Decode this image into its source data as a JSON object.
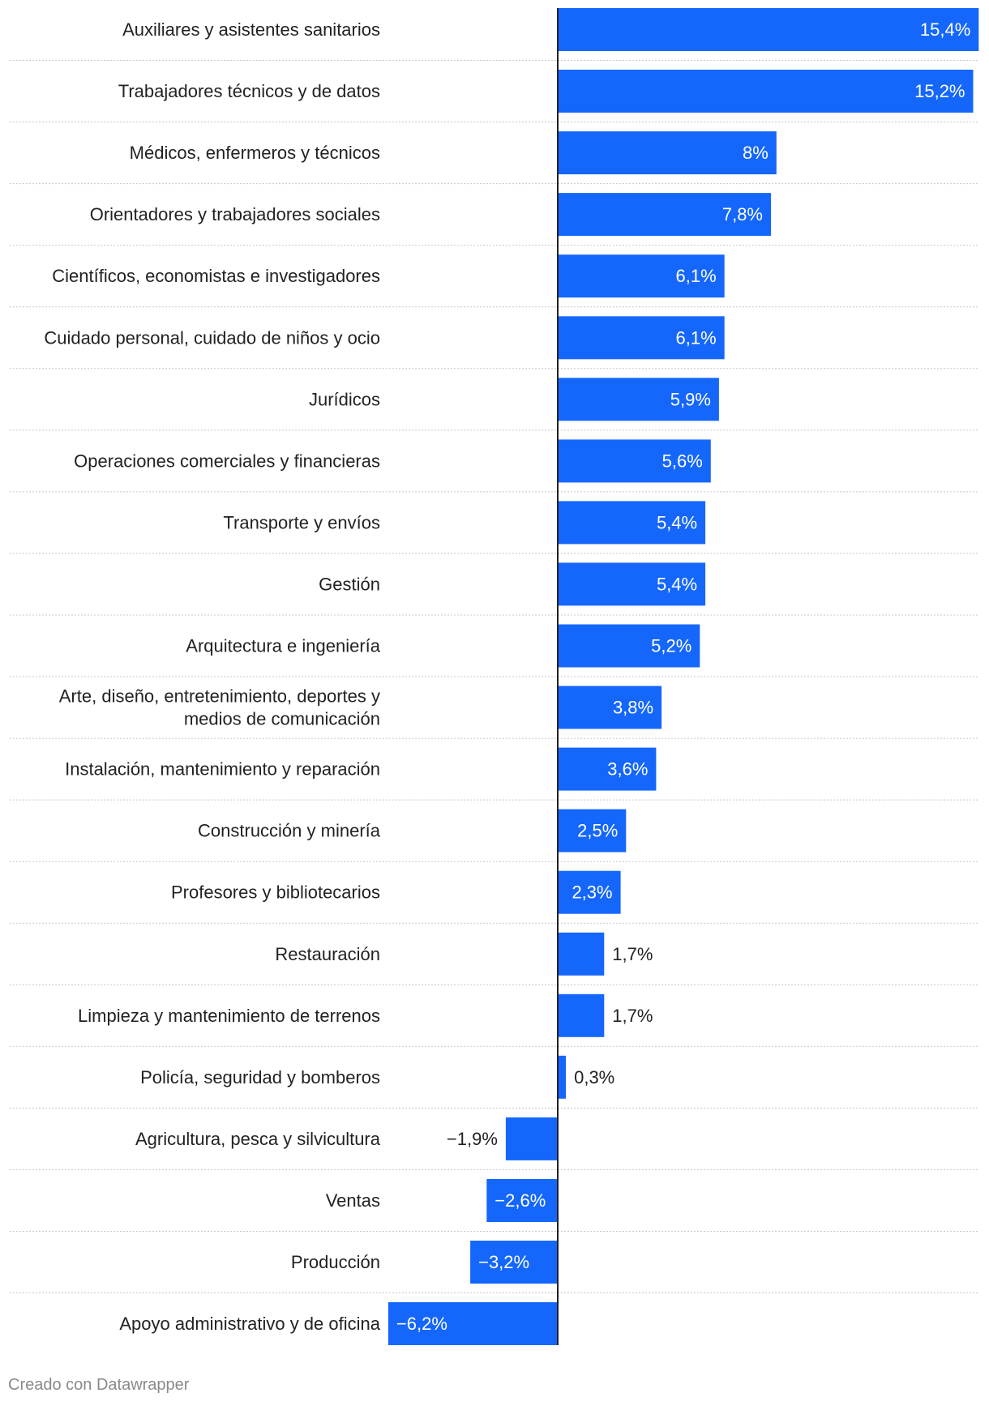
{
  "chart_data": {
    "type": "bar",
    "orientation": "horizontal",
    "categories": [
      "Auxiliares y asistentes sanitarios",
      "Trabajadores técnicos y de datos",
      "Médicos, enfermeros y técnicos",
      "Orientadores y trabajadores sociales",
      "Científicos, economistas e investigadores",
      "Cuidado personal, cuidado de niños y ocio",
      "Jurídicos",
      "Operaciones comerciales y financieras",
      "Transporte y envíos",
      "Gestión",
      "Arquitectura e ingeniería",
      "Arte, diseño, entretenimiento, deportes y medios de comunicación",
      "Instalación, mantenimiento y reparación",
      "Construcción y minería",
      "Profesores y bibliotecarios",
      "Restauración",
      "Limpieza y mantenimiento de terrenos",
      "Policía, seguridad y bomberos",
      "Agricultura, pesca y silvicultura",
      "Ventas",
      "Producción",
      "Apoyo administrativo y de oficina"
    ],
    "category_lines": [
      [
        "Auxiliares y asistentes sanitarios"
      ],
      [
        "Trabajadores técnicos y de datos"
      ],
      [
        "Médicos, enfermeros y técnicos"
      ],
      [
        "Orientadores y trabajadores sociales"
      ],
      [
        "Científicos, economistas e investigadores"
      ],
      [
        "Cuidado personal, cuidado de niños y ocio"
      ],
      [
        "Jurídicos"
      ],
      [
        "Operaciones comerciales y financieras"
      ],
      [
        "Transporte y envíos"
      ],
      [
        "Gestión"
      ],
      [
        "Arquitectura e ingeniería"
      ],
      [
        "Arte, diseño, entretenimiento, deportes y",
        "medios de comunicación"
      ],
      [
        "Instalación, mantenimiento y reparación"
      ],
      [
        "Construcción y minería"
      ],
      [
        "Profesores y bibliotecarios"
      ],
      [
        "Restauración"
      ],
      [
        "Limpieza y mantenimiento de terrenos"
      ],
      [
        "Policía, seguridad y bomberos"
      ],
      [
        "Agricultura, pesca y silvicultura"
      ],
      [
        "Ventas"
      ],
      [
        "Producción"
      ],
      [
        "Apoyo administrativo y de oficina"
      ]
    ],
    "values": [
      15.4,
      15.2,
      8,
      7.8,
      6.1,
      6.1,
      5.9,
      5.6,
      5.4,
      5.4,
      5.2,
      3.8,
      3.6,
      2.5,
      2.3,
      1.7,
      1.7,
      0.3,
      -1.9,
      -2.6,
      -3.2,
      -6.2
    ],
    "value_labels": [
      "15,4%",
      "15,2%",
      "8%",
      "7,8%",
      "6,1%",
      "6,1%",
      "5,9%",
      "5,6%",
      "5,4%",
      "5,4%",
      "5,2%",
      "3,8%",
      "3,6%",
      "2,5%",
      "2,3%",
      "1,7%",
      "1,7%",
      "0,3%",
      "−1,9%",
      "−2,6%",
      "−3,2%",
      "−6,2%"
    ],
    "xlim": [
      -6.2,
      15.4
    ],
    "bar_color": "#1567fb",
    "grid": false
  },
  "footer": {
    "credit": "Creado con Datawrapper"
  }
}
